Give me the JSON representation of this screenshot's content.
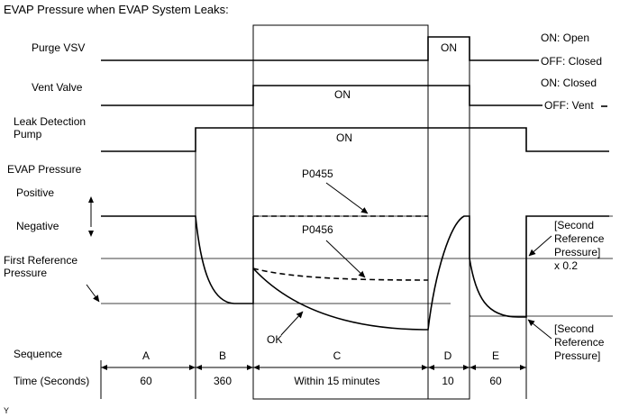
{
  "title": "EVAP Pressure when EVAP System Leaks:",
  "rows": {
    "purge_vsv": {
      "label": "Purge VSV",
      "state_on": "ON: Open",
      "state_off": "OFF: Closed",
      "on_text": "ON"
    },
    "vent_valve": {
      "label": "Vent Valve",
      "state_on": "ON: Closed",
      "state_off": "OFF: Vent",
      "on_text": "ON"
    },
    "leak_pump": {
      "label_line1": "Leak Detection",
      "label_line2": "Pump",
      "on_text": "ON"
    }
  },
  "evap": {
    "label": "EVAP Pressure",
    "positive": "Positive",
    "negative": "Negative",
    "first_ref_line1": "First Reference",
    "first_ref_line2": "Pressure",
    "code_p0455": "P0455",
    "code_p0456": "P0456",
    "ok": "OK",
    "second_ref_x02": [
      "[Second",
      "Reference",
      "Pressure]",
      "x 0.2"
    ],
    "second_ref": [
      "[Second",
      "Reference",
      "Pressure]"
    ]
  },
  "sequence": {
    "label": "Sequence",
    "phases": [
      "A",
      "B",
      "C",
      "D",
      "E"
    ]
  },
  "time": {
    "label": "Time (Seconds)",
    "values": [
      "60",
      "360",
      "Within 15 minutes",
      "10",
      "60"
    ]
  },
  "corner_mark": "Y"
}
